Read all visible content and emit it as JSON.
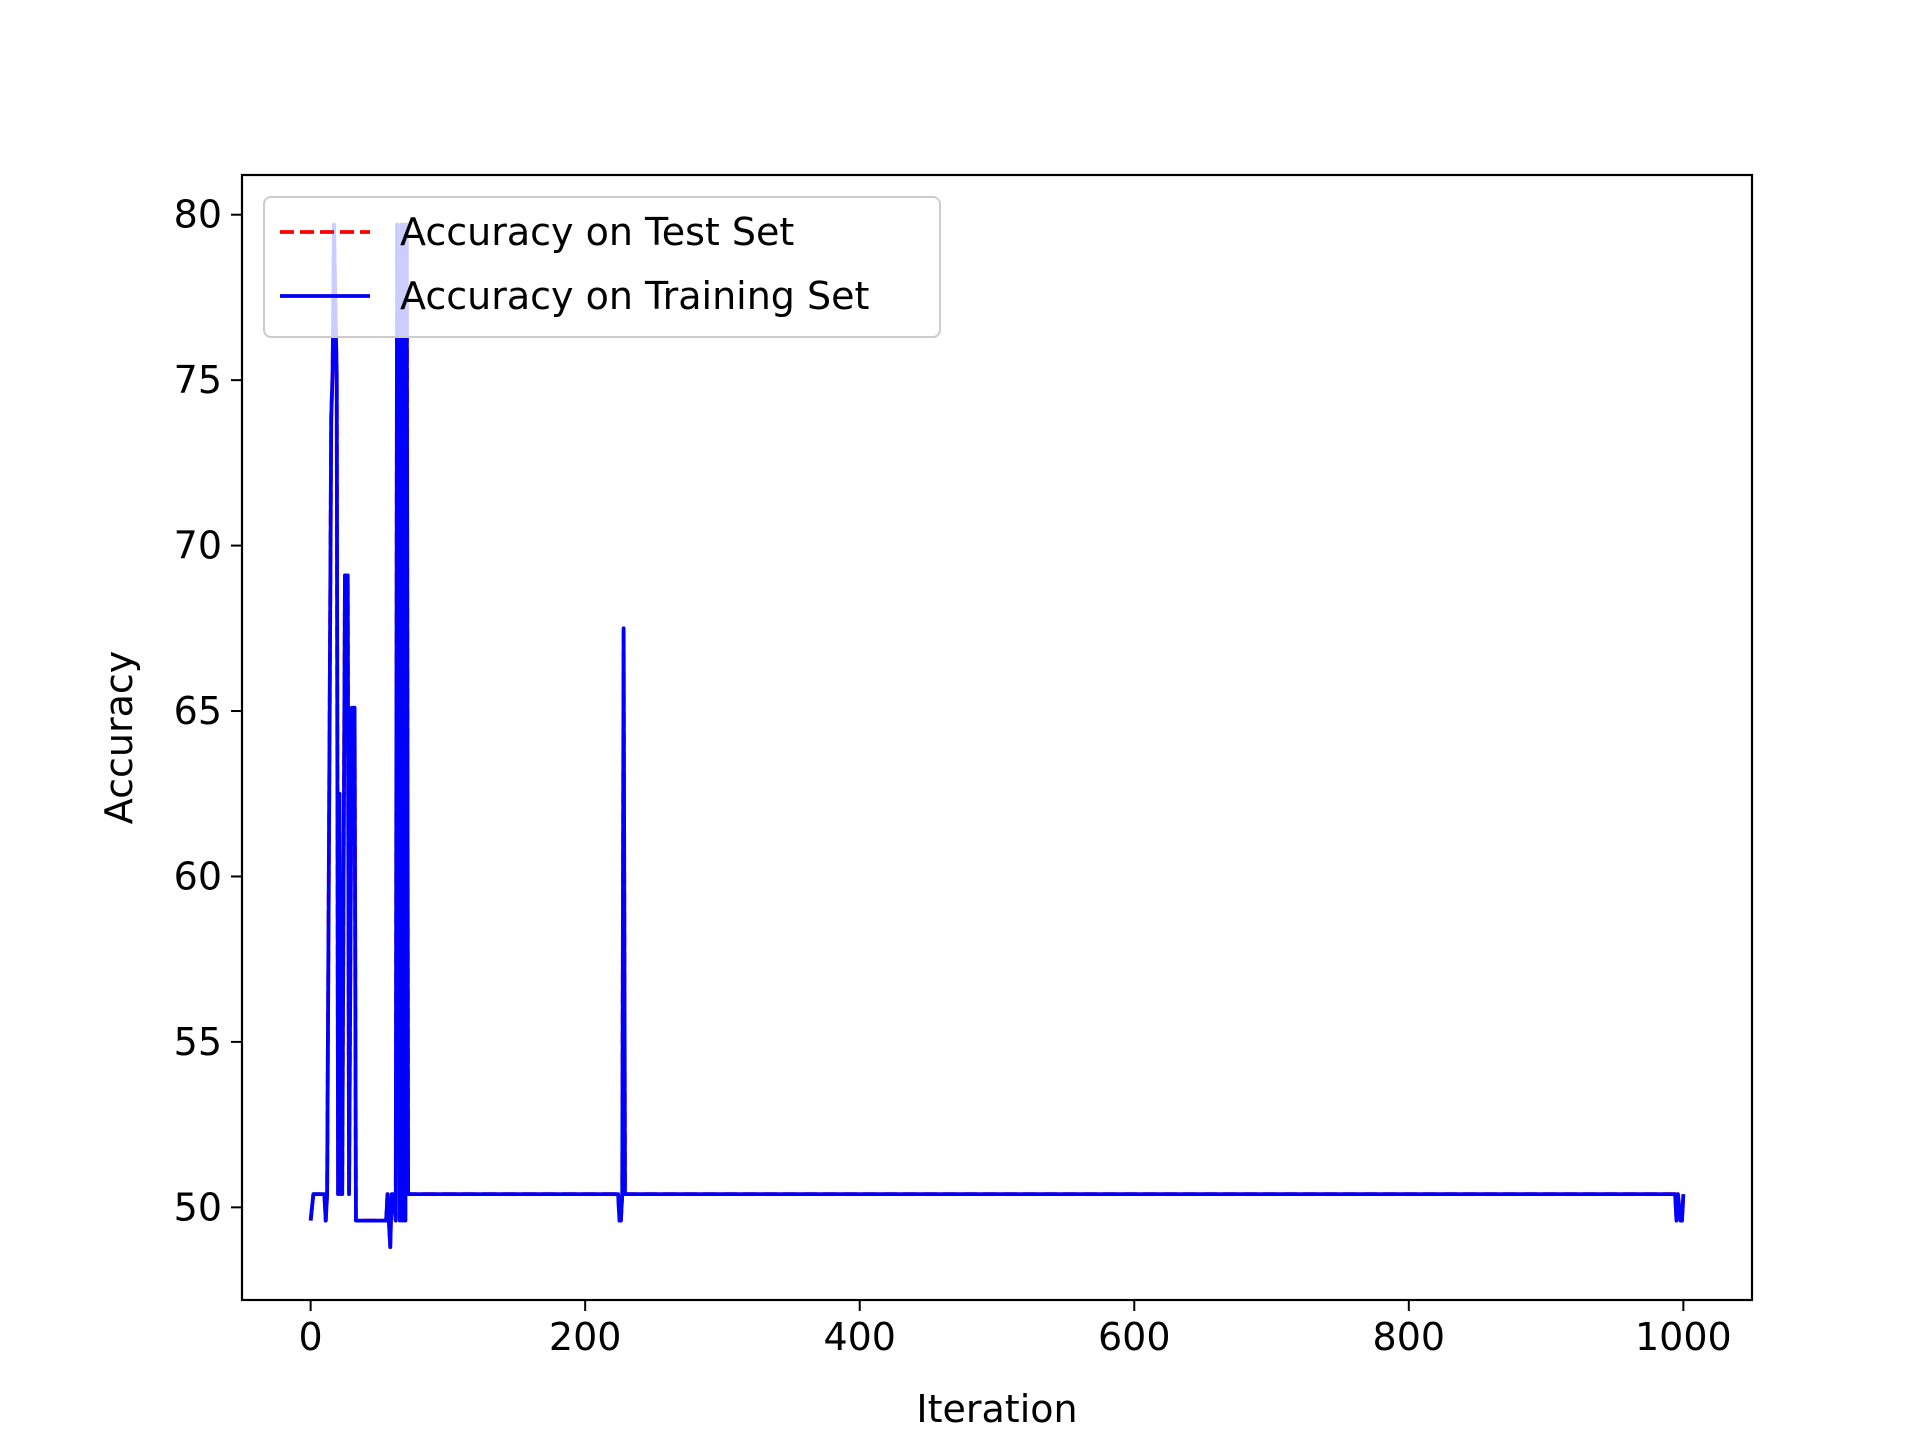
{
  "chart_data": {
    "type": "line",
    "xlabel": "Iteration",
    "ylabel": "Accuracy",
    "xlim": [
      -50,
      1050
    ],
    "ylim": [
      47.2,
      81.2
    ],
    "xticks": [
      0,
      200,
      400,
      600,
      800,
      1000
    ],
    "yticks": [
      50,
      55,
      60,
      65,
      70,
      75,
      80
    ],
    "grid": false,
    "legend_position": "upper-left",
    "series": [
      {
        "name": "Accuracy on Test Set",
        "color": "#ff0000",
        "style": "dashed",
        "x": [
          0,
          2,
          3,
          10,
          11,
          12,
          15,
          16,
          17,
          19,
          20,
          21,
          22,
          23,
          25,
          27,
          28,
          30,
          32,
          33,
          35,
          55,
          56,
          58,
          59,
          60,
          62,
          63,
          65,
          66,
          67,
          68,
          69,
          70,
          71,
          72,
          73,
          75,
          224,
          225,
          226,
          227,
          228,
          229,
          230,
          994,
          995,
          996,
          998,
          999,
          1000
        ],
        "values": [
          49.6,
          50.4,
          50.4,
          50.4,
          49.6,
          50.4,
          73.9,
          75.2,
          79.7,
          75.1,
          50.4,
          62.5,
          50.4,
          50.4,
          69.1,
          69.1,
          50.4,
          65.1,
          65.1,
          49.6,
          49.6,
          49.6,
          50.4,
          48.8,
          50.4,
          50.4,
          49.6,
          79.7,
          49.6,
          79.7,
          49.6,
          79.7,
          49.6,
          79.7,
          50.4,
          50.4,
          50.4,
          50.4,
          50.4,
          49.6,
          49.6,
          50.4,
          67.5,
          50.4,
          50.4,
          50.4,
          49.6,
          50.4,
          49.6,
          49.6,
          50.4
        ]
      },
      {
        "name": "Accuracy on Training Set",
        "color": "#0000ff",
        "style": "solid",
        "x": [
          0,
          2,
          3,
          10,
          11,
          12,
          15,
          16,
          17,
          19,
          20,
          21,
          22,
          23,
          25,
          27,
          28,
          30,
          32,
          33,
          35,
          55,
          56,
          58,
          59,
          60,
          62,
          63,
          65,
          66,
          67,
          68,
          69,
          70,
          71,
          72,
          73,
          75,
          224,
          225,
          226,
          227,
          228,
          229,
          230,
          994,
          995,
          996,
          998,
          999,
          1000
        ],
        "values": [
          49.6,
          50.4,
          50.4,
          50.4,
          49.6,
          50.4,
          73.9,
          75.2,
          79.7,
          75.1,
          50.4,
          62.5,
          50.4,
          50.4,
          69.1,
          69.1,
          50.4,
          65.1,
          65.1,
          49.6,
          49.6,
          49.6,
          50.4,
          48.8,
          50.4,
          50.4,
          49.6,
          79.7,
          49.6,
          79.7,
          49.6,
          79.7,
          49.6,
          79.7,
          50.4,
          50.4,
          50.4,
          50.4,
          50.4,
          49.6,
          49.6,
          50.4,
          67.5,
          50.4,
          50.4,
          50.4,
          49.6,
          50.4,
          49.6,
          49.6,
          50.4
        ]
      }
    ]
  }
}
